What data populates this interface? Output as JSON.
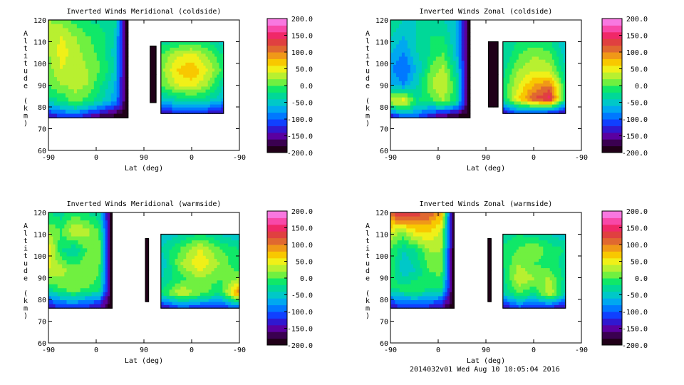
{
  "footer": "2014032v01 Wed Aug 10 10:05:04 2016",
  "colorbar": {
    "ticks": [
      "200.0",
      "150.0",
      "100.0",
      "50.0",
      "0.0",
      "-50.0",
      "-100.0",
      "-150.0",
      "-200.0"
    ],
    "colors": [
      "#200018",
      "#3a0050",
      "#5a00a0",
      "#3018d0",
      "#1040ff",
      "#0078ff",
      "#00a8f0",
      "#00c8c8",
      "#00d898",
      "#10e868",
      "#70f040",
      "#b8f030",
      "#f0f018",
      "#f8c800",
      "#f09818",
      "#e06830",
      "#e04040",
      "#f02868",
      "#f848a8",
      "#f878e0"
    ]
  },
  "chart_data": [
    {
      "type": "heatmap",
      "title": "Inverted Winds Meridional (coldside)",
      "xlabel": "Lat (deg)",
      "ylabel": "Altitude (km)",
      "x_ticks": [
        "-90",
        "0",
        "90",
        "0",
        "-90"
      ],
      "y_ticks": [
        "60",
        "70",
        "80",
        "90",
        "100",
        "110",
        "120"
      ],
      "ylim": [
        60,
        120
      ],
      "zlim": [
        -200,
        200
      ],
      "segments": [
        {
          "side": "left",
          "x": [
            -90,
            60
          ],
          "y": [
            75,
            120
          ],
          "z": [
            [
              -150,
              -120,
              -120,
              -150,
              -180,
              -200,
              -200
            ],
            [
              -30,
              -20,
              10,
              -10,
              -40,
              -70,
              -200
            ],
            [
              0,
              20,
              30,
              20,
              -20,
              -60,
              -200
            ],
            [
              10,
              40,
              30,
              20,
              0,
              -40,
              -200
            ],
            [
              20,
              50,
              30,
              10,
              -10,
              -50,
              -200
            ],
            [
              30,
              40,
              20,
              0,
              -10,
              -40,
              -200
            ],
            [
              20,
              10,
              -10,
              -20,
              -30,
              -30,
              -200
            ]
          ]
        },
        {
          "side": "middle",
          "x": [
            85,
            100
          ],
          "y": [
            82,
            108
          ],
          "z": [
            [
              -200,
              -200
            ],
            [
              -200,
              -200
            ]
          ]
        },
        {
          "side": "right",
          "x": [
            58,
            -60
          ],
          "y": [
            77,
            110
          ],
          "z": [
            [
              -150,
              -120,
              -120,
              -130,
              -150
            ],
            [
              -50,
              -30,
              -20,
              -30,
              -60
            ],
            [
              0,
              40,
              50,
              20,
              -40
            ],
            [
              10,
              60,
              80,
              40,
              -10
            ],
            [
              0,
              40,
              50,
              20,
              -20
            ],
            [
              -30,
              -20,
              -10,
              -20,
              -50
            ]
          ]
        }
      ]
    },
    {
      "type": "heatmap",
      "title": "Inverted Winds Zonal (coldside)",
      "xlabel": "Lat (deg)",
      "ylabel": "Altitude (km)",
      "x_ticks": [
        "-90",
        "0",
        "90",
        "0",
        "-90"
      ],
      "y_ticks": [
        "60",
        "70",
        "80",
        "90",
        "100",
        "110",
        "120"
      ],
      "ylim": [
        60,
        120
      ],
      "zlim": [
        -200,
        200
      ],
      "segments": [
        {
          "side": "left",
          "x": [
            -90,
            60
          ],
          "y": [
            75,
            120
          ],
          "z": [
            [
              -150,
              -100,
              -100,
              -150,
              -180,
              -200,
              -200
            ],
            [
              40,
              60,
              -20,
              -10,
              20,
              -20,
              -200
            ],
            [
              -60,
              -80,
              -40,
              20,
              40,
              -20,
              -200
            ],
            [
              -80,
              -100,
              -60,
              0,
              30,
              -40,
              -200
            ],
            [
              -60,
              -80,
              -40,
              -20,
              0,
              -60,
              -200
            ],
            [
              -40,
              -60,
              -40,
              -20,
              -20,
              -60,
              -200
            ],
            [
              -20,
              -40,
              -40,
              -30,
              -40,
              -60,
              -200
            ]
          ]
        },
        {
          "side": "middle",
          "x": [
            70,
            100
          ],
          "y": [
            80,
            110
          ],
          "z": [
            [
              -200,
              -200
            ],
            [
              -200,
              -200
            ]
          ]
        },
        {
          "side": "right",
          "x": [
            58,
            -60
          ],
          "y": [
            77,
            110
          ],
          "z": [
            [
              -150,
              -100,
              -120,
              -130,
              -150
            ],
            [
              -20,
              60,
              120,
              150,
              -20
            ],
            [
              -20,
              40,
              80,
              100,
              -20
            ],
            [
              -30,
              20,
              40,
              30,
              -40
            ],
            [
              -40,
              0,
              20,
              10,
              -50
            ],
            [
              -40,
              -20,
              -10,
              -20,
              -60
            ]
          ]
        }
      ]
    },
    {
      "type": "heatmap",
      "title": "Inverted Winds Meridional (warmside)",
      "xlabel": "Lat (deg)",
      "ylabel": "Altitude (km)",
      "x_ticks": [
        "-90",
        "0",
        "90",
        "0",
        "-90"
      ],
      "y_ticks": [
        "60",
        "70",
        "80",
        "90",
        "100",
        "110",
        "120"
      ],
      "ylim": [
        60,
        120
      ],
      "zlim": [
        -200,
        200
      ],
      "segments": [
        {
          "side": "left",
          "x": [
            -90,
            30
          ],
          "y": [
            76,
            120
          ],
          "z": [
            [
              -150,
              -120,
              -120,
              -130,
              -150,
              -200
            ],
            [
              -20,
              0,
              20,
              0,
              -10,
              -200
            ],
            [
              40,
              30,
              10,
              20,
              0,
              -200
            ],
            [
              60,
              -20,
              -40,
              0,
              10,
              -200
            ],
            [
              20,
              0,
              40,
              30,
              0,
              -200
            ],
            [
              -20,
              -30,
              -10,
              -20,
              -40,
              -200
            ]
          ]
        },
        {
          "side": "middle",
          "x": [
            66,
            70
          ],
          "y": [
            79,
            108
          ],
          "z": [
            [
              -200,
              -200
            ],
            [
              -200,
              -200
            ]
          ]
        },
        {
          "side": "right",
          "x": [
            58,
            -90
          ],
          "y": [
            76,
            110
          ],
          "z": [
            [
              -150,
              -110,
              -120,
              -130,
              -100
            ],
            [
              -20,
              40,
              10,
              -20,
              100
            ],
            [
              -40,
              -10,
              20,
              0,
              20
            ],
            [
              -60,
              20,
              60,
              20,
              -20
            ],
            [
              -40,
              0,
              40,
              0,
              -20
            ],
            [
              -60,
              -40,
              -20,
              -40,
              -60
            ]
          ]
        }
      ]
    },
    {
      "type": "heatmap",
      "title": "Inverted Winds Zonal (warmside)",
      "xlabel": "Lat (deg)",
      "ylabel": "Altitude (km)",
      "x_ticks": [
        "-90",
        "0",
        "90",
        "0",
        "-90"
      ],
      "y_ticks": [
        "60",
        "70",
        "80",
        "90",
        "100",
        "110",
        "120"
      ],
      "ylim": [
        60,
        120
      ],
      "zlim": [
        -200,
        200
      ],
      "segments": [
        {
          "side": "left",
          "x": [
            -90,
            30
          ],
          "y": [
            76,
            120
          ],
          "z": [
            [
              -150,
              -120,
              -120,
              -130,
              -150,
              -200
            ],
            [
              -20,
              -10,
              0,
              -20,
              -20,
              -200
            ],
            [
              0,
              -60,
              -40,
              0,
              10,
              -200
            ],
            [
              0,
              -40,
              -20,
              20,
              20,
              -200
            ],
            [
              40,
              20,
              60,
              60,
              40,
              -200
            ],
            [
              120,
              150,
              130,
              120,
              80,
              -200
            ]
          ]
        },
        {
          "side": "middle",
          "x": [
            68,
            72
          ],
          "y": [
            79,
            108
          ],
          "z": [
            [
              -200,
              -200
            ],
            [
              -200,
              -200
            ]
          ]
        },
        {
          "side": "right",
          "x": [
            58,
            -60
          ],
          "y": [
            76,
            110
          ],
          "z": [
            [
              -150,
              -110,
              -120,
              -130,
              -150
            ],
            [
              -40,
              0,
              -20,
              40,
              -40
            ],
            [
              -30,
              40,
              20,
              20,
              -30
            ],
            [
              -20,
              20,
              0,
              -10,
              -30
            ],
            [
              -10,
              0,
              20,
              -10,
              -20
            ],
            [
              -40,
              -20,
              -30,
              -40,
              -60
            ]
          ]
        }
      ]
    }
  ]
}
